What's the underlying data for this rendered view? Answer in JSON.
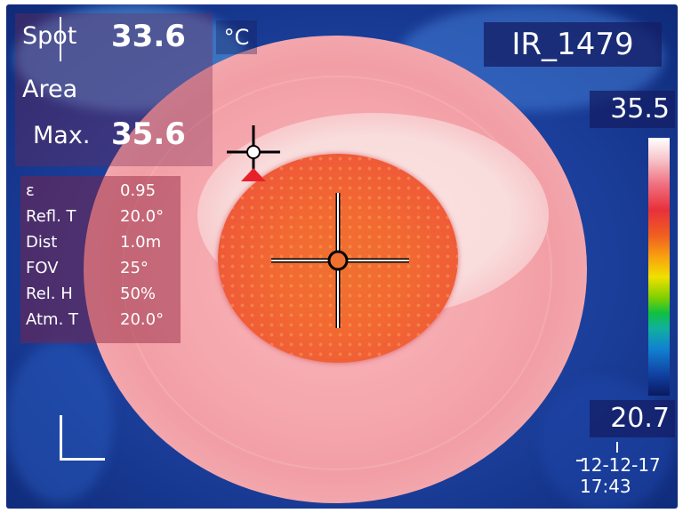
{
  "spot": {
    "label": "Spot",
    "value": "33.6",
    "unit": "°C"
  },
  "area": {
    "label": "Area"
  },
  "max": {
    "label": "Max.",
    "value": "35.6"
  },
  "params": [
    {
      "key": "ε",
      "value": "0.95"
    },
    {
      "key": "Refl. T",
      "value": "20.0°"
    },
    {
      "key": "Dist",
      "value": "1.0m"
    },
    {
      "key": "FOV",
      "value": "25°"
    },
    {
      "key": "Rel. H",
      "value": "50%"
    },
    {
      "key": "Atm. T",
      "value": "20.0°"
    }
  ],
  "file_label": "IR_1479",
  "scale": {
    "max": "35.5",
    "min": "20.7"
  },
  "date": "12-12-17",
  "time": "17:43",
  "colors": {
    "cold": "#1a3d98",
    "warm": "#f5a7ad",
    "hot": "#f26a32",
    "marker": "#e8202a"
  },
  "icons": {
    "crosshair": "center-crosshair-icon",
    "small_crosshair": "spot-crosshair-icon",
    "triangle": "max-marker-icon",
    "corner": "corner-bracket-icon"
  }
}
